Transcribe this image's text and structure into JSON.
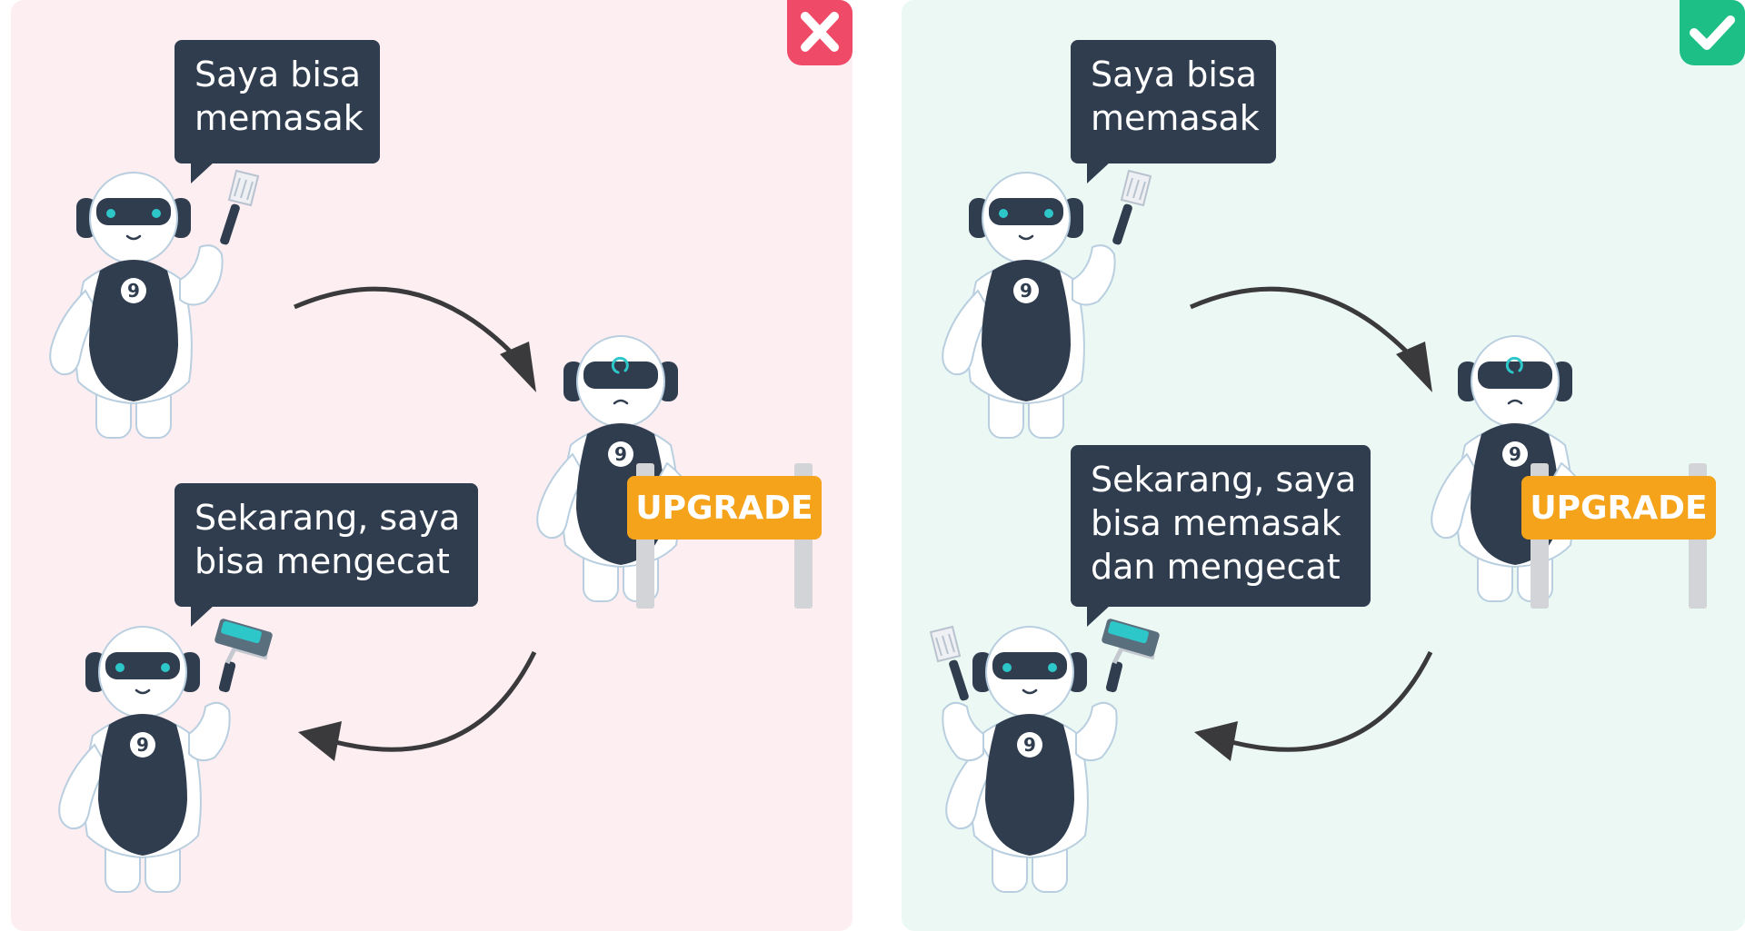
{
  "panels": {
    "wrong": {
      "badge_icon": "close-icon",
      "badge_color": "#ef4a68",
      "background": "#fdeef1",
      "top_bubble": [
        "Saya bisa",
        "memasak"
      ],
      "bottom_bubble": [
        "Sekarang, saya",
        "bisa mengecat"
      ],
      "sign": "UPGRADE"
    },
    "right": {
      "badge_icon": "check-icon",
      "badge_color": "#1dbf86",
      "background": "#ecf8f3",
      "top_bubble": [
        "Saya bisa",
        "memasak"
      ],
      "bottom_bubble": [
        "Sekarang, saya",
        "bisa memasak",
        "dan mengecat"
      ],
      "sign": "UPGRADE"
    }
  },
  "robot_chest_label": "9",
  "colors": {
    "robot_body": "#2f3d4f",
    "robot_eyes": "#2ec7c9",
    "sign": "#f5a31a",
    "arrow": "#3a3a3c"
  }
}
